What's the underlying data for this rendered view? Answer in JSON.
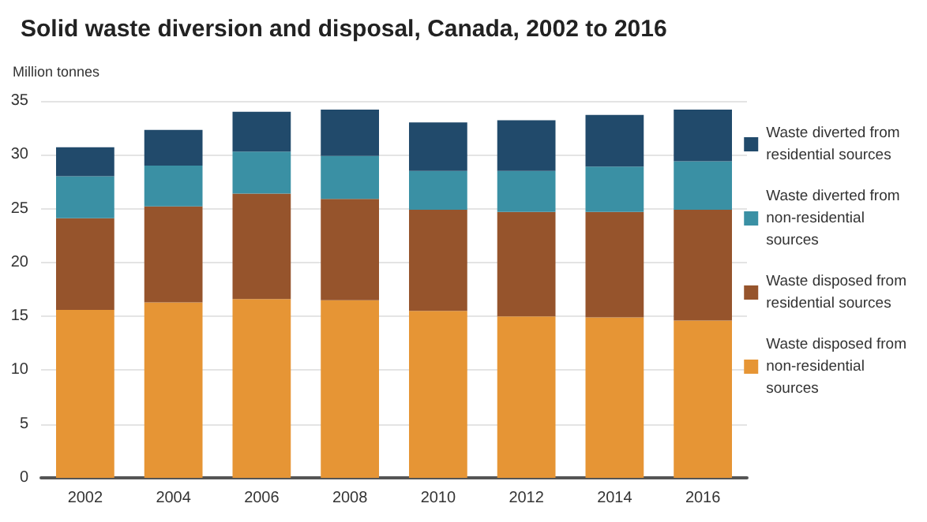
{
  "chart_data": {
    "type": "bar",
    "title": "Solid waste diversion and disposal, Canada, 2002 to 2016",
    "ylabel": "Million tonnes",
    "categories": [
      "2002",
      "2004",
      "2006",
      "2008",
      "2010",
      "2012",
      "2014",
      "2016"
    ],
    "series": [
      {
        "name": "Waste disposed from non-residential sources",
        "color": "#e69535",
        "values": [
          15.6,
          16.3,
          16.6,
          16.5,
          15.5,
          15.0,
          14.9,
          14.6
        ]
      },
      {
        "name": "Waste disposed from residential sources",
        "color": "#96542c",
        "values": [
          8.5,
          8.9,
          9.8,
          9.4,
          9.4,
          9.7,
          9.8,
          10.3
        ]
      },
      {
        "name": "Waste diverted from non-residential sources",
        "color": "#3a90a4",
        "values": [
          3.9,
          3.8,
          3.9,
          4.0,
          3.6,
          3.8,
          4.2,
          4.5
        ]
      },
      {
        "name": "Waste diverted from residential sources",
        "color": "#214a6b",
        "values": [
          2.7,
          3.3,
          3.7,
          4.3,
          4.5,
          4.7,
          4.8,
          4.8
        ]
      }
    ],
    "stacked": true,
    "ylim": [
      0,
      35
    ],
    "yticks": [
      0,
      5,
      10,
      15,
      20,
      25,
      30,
      35
    ],
    "grid": "y",
    "legend": "right"
  }
}
